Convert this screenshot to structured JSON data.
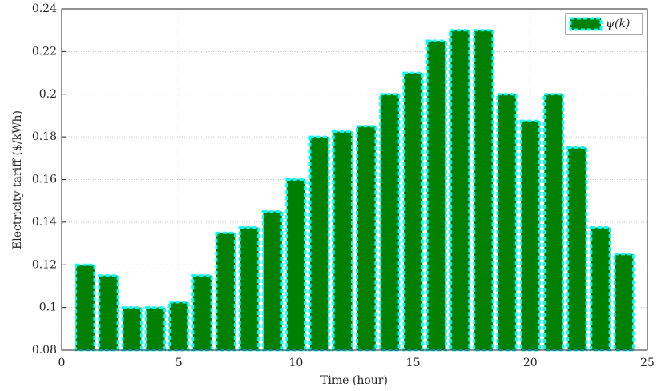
{
  "chart_data": {
    "type": "bar",
    "xlabel": "Time (hour)",
    "ylabel": "Electricity tariff ($/kWh)",
    "x": [
      1,
      2,
      3,
      4,
      5,
      6,
      7,
      8,
      9,
      10,
      11,
      12,
      13,
      14,
      15,
      16,
      17,
      18,
      19,
      20,
      21,
      22,
      23,
      24
    ],
    "series": [
      {
        "name": "ψ(k)",
        "color": "#007f00",
        "edge_color": "#00ffff",
        "values": [
          0.12,
          0.115,
          0.1,
          0.1,
          0.1025,
          0.115,
          0.135,
          0.1375,
          0.145,
          0.16,
          0.18,
          0.1825,
          0.185,
          0.2,
          0.21,
          0.225,
          0.23,
          0.23,
          0.2,
          0.1875,
          0.2,
          0.175,
          0.1375,
          0.125
        ]
      }
    ],
    "xlim": [
      0,
      25
    ],
    "xticks": [
      0,
      5,
      10,
      15,
      20,
      25
    ],
    "ylim": [
      0.08,
      0.24
    ],
    "yticks": [
      0.08,
      0.1,
      0.12,
      0.14,
      0.16,
      0.18,
      0.2,
      0.22,
      0.24
    ],
    "grid": true,
    "legend": "northeast"
  }
}
